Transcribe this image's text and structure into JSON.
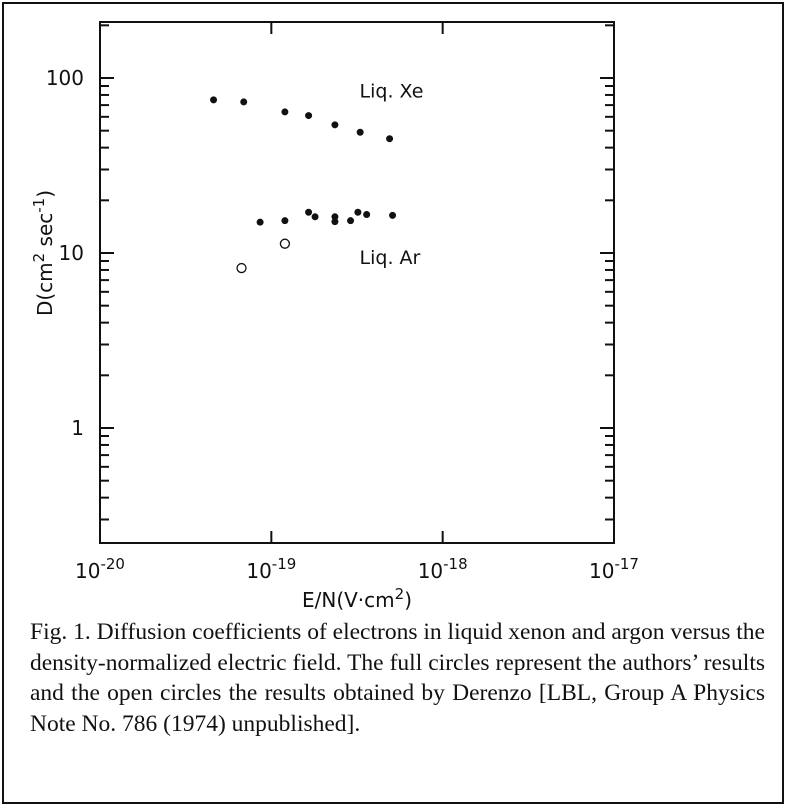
{
  "chart_data": {
    "type": "scatter",
    "x_scale": "log",
    "y_scale": "log",
    "xlim": [
      1e-20,
      1e-17
    ],
    "ylim": [
      0.25,
      200
    ],
    "xlabel": "E/N(V·cm2)",
    "ylabel": "D(cm2 sec-1)",
    "x_tick_labels": [
      {
        "value": 1e-20,
        "base": "10",
        "exp": "-20"
      },
      {
        "value": 1e-19,
        "base": "10",
        "exp": "-19"
      },
      {
        "value": 1e-18,
        "base": "10",
        "exp": "-18"
      },
      {
        "value": 1e-17,
        "base": "10",
        "exp": "-17"
      }
    ],
    "y_tick_labels": [
      {
        "value": 1,
        "label": "1"
      },
      {
        "value": 10,
        "label": "10"
      },
      {
        "value": 100,
        "label": "100"
      }
    ],
    "annotations": [
      {
        "text": "Liq. Xe",
        "x": 3.5e-19,
        "y": 85
      },
      {
        "text": "Liq. Ar",
        "x": 3.5e-19,
        "y": 9.5
      }
    ],
    "series": [
      {
        "name": "Liq. Xe",
        "marker": "filled",
        "points": [
          {
            "x": 4.6e-20,
            "y": 75
          },
          {
            "x": 6.9e-20,
            "y": 73
          },
          {
            "x": 1.2e-19,
            "y": 64
          },
          {
            "x": 1.65e-19,
            "y": 61
          },
          {
            "x": 2.35e-19,
            "y": 54
          },
          {
            "x": 3.3e-19,
            "y": 49
          },
          {
            "x": 4.9e-19,
            "y": 45
          }
        ]
      },
      {
        "name": "Liq. Ar",
        "marker": "filled",
        "points": [
          {
            "x": 8.6e-20,
            "y": 15
          },
          {
            "x": 1.2e-19,
            "y": 15.3
          },
          {
            "x": 1.65e-19,
            "y": 17.1
          },
          {
            "x": 1.8e-19,
            "y": 16.1
          },
          {
            "x": 2.35e-19,
            "y": 16.1
          },
          {
            "x": 2.35e-19,
            "y": 15.1
          },
          {
            "x": 2.9e-19,
            "y": 15.3
          },
          {
            "x": 3.2e-19,
            "y": 17.1
          },
          {
            "x": 3.6e-19,
            "y": 16.6
          },
          {
            "x": 5.1e-19,
            "y": 16.4
          }
        ]
      },
      {
        "name": "Derenzo",
        "marker": "open",
        "points": [
          {
            "x": 6.7e-20,
            "y": 8.2
          },
          {
            "x": 1.2e-19,
            "y": 11.3
          }
        ]
      }
    ]
  },
  "caption": "Fig. 1. Diffusion coefficients of electrons in liquid xenon and argon versus the density-normalized electric field. The full circles represent the authors’ results and the open circles the results obtained by Derenzo [LBL, Group A Physics Note No. 786 (1974) unpublished]."
}
